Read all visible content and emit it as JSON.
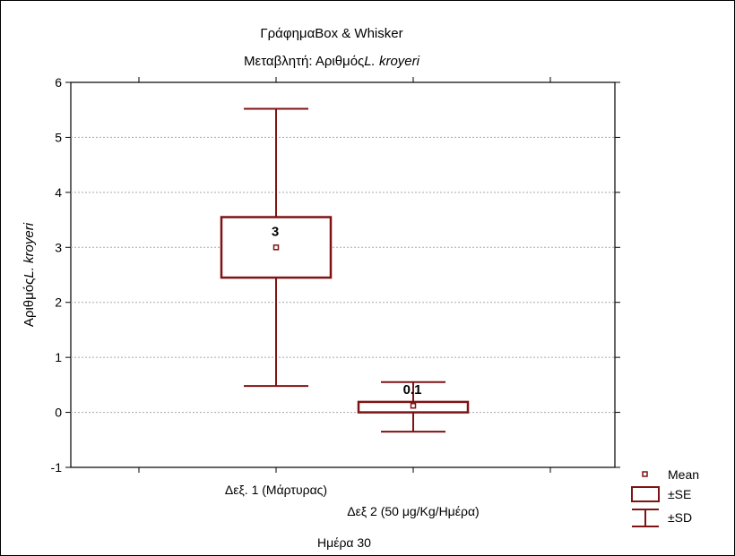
{
  "chart_data": {
    "type": "boxplot",
    "title_prefix": "Γράφημα",
    "title_rest": "Box & Whisker",
    "subtitle_prefix": "Μεταβλητή: Αριθμός",
    "subtitle_italic": "L. kroyeri",
    "ylabel_prefix": "Αριθμός",
    "ylabel_italic": "L. kroyeri",
    "xlabel": "Ημέρα 30",
    "ylim": [
      -1,
      6
    ],
    "yticks": [
      "6",
      "5",
      "4",
      "3",
      "2",
      "1",
      "0",
      "-1"
    ],
    "ytick_values": [
      6,
      5,
      4,
      3,
      2,
      1,
      0,
      -1
    ],
    "grid": true,
    "categories": [
      "Δεξ. 1 (Μάρτυρας)",
      "Δεξ 2 (50 μg/Kg/Ημέρα)"
    ],
    "boxes": [
      {
        "category": "Δεξ. 1 (Μάρτυρας)",
        "mean": 3.0,
        "mean_label": "3",
        "se_low": 2.45,
        "se_high": 3.55,
        "sd_low": 0.48,
        "sd_high": 5.52
      },
      {
        "category": "Δεξ 2 (50 μg/Kg/Ημέρα)",
        "mean": 0.12,
        "mean_label": "0.1",
        "se_low": 0.0,
        "se_high": 0.19,
        "sd_low": -0.35,
        "sd_high": 0.55
      }
    ],
    "legend": {
      "position": "bottom-right",
      "items": [
        {
          "label": "Mean",
          "symbol": "point"
        },
        {
          "label": "±SE",
          "symbol": "box"
        },
        {
          "label": "±SD",
          "symbol": "whisker"
        }
      ]
    },
    "color": "#7f1214"
  }
}
